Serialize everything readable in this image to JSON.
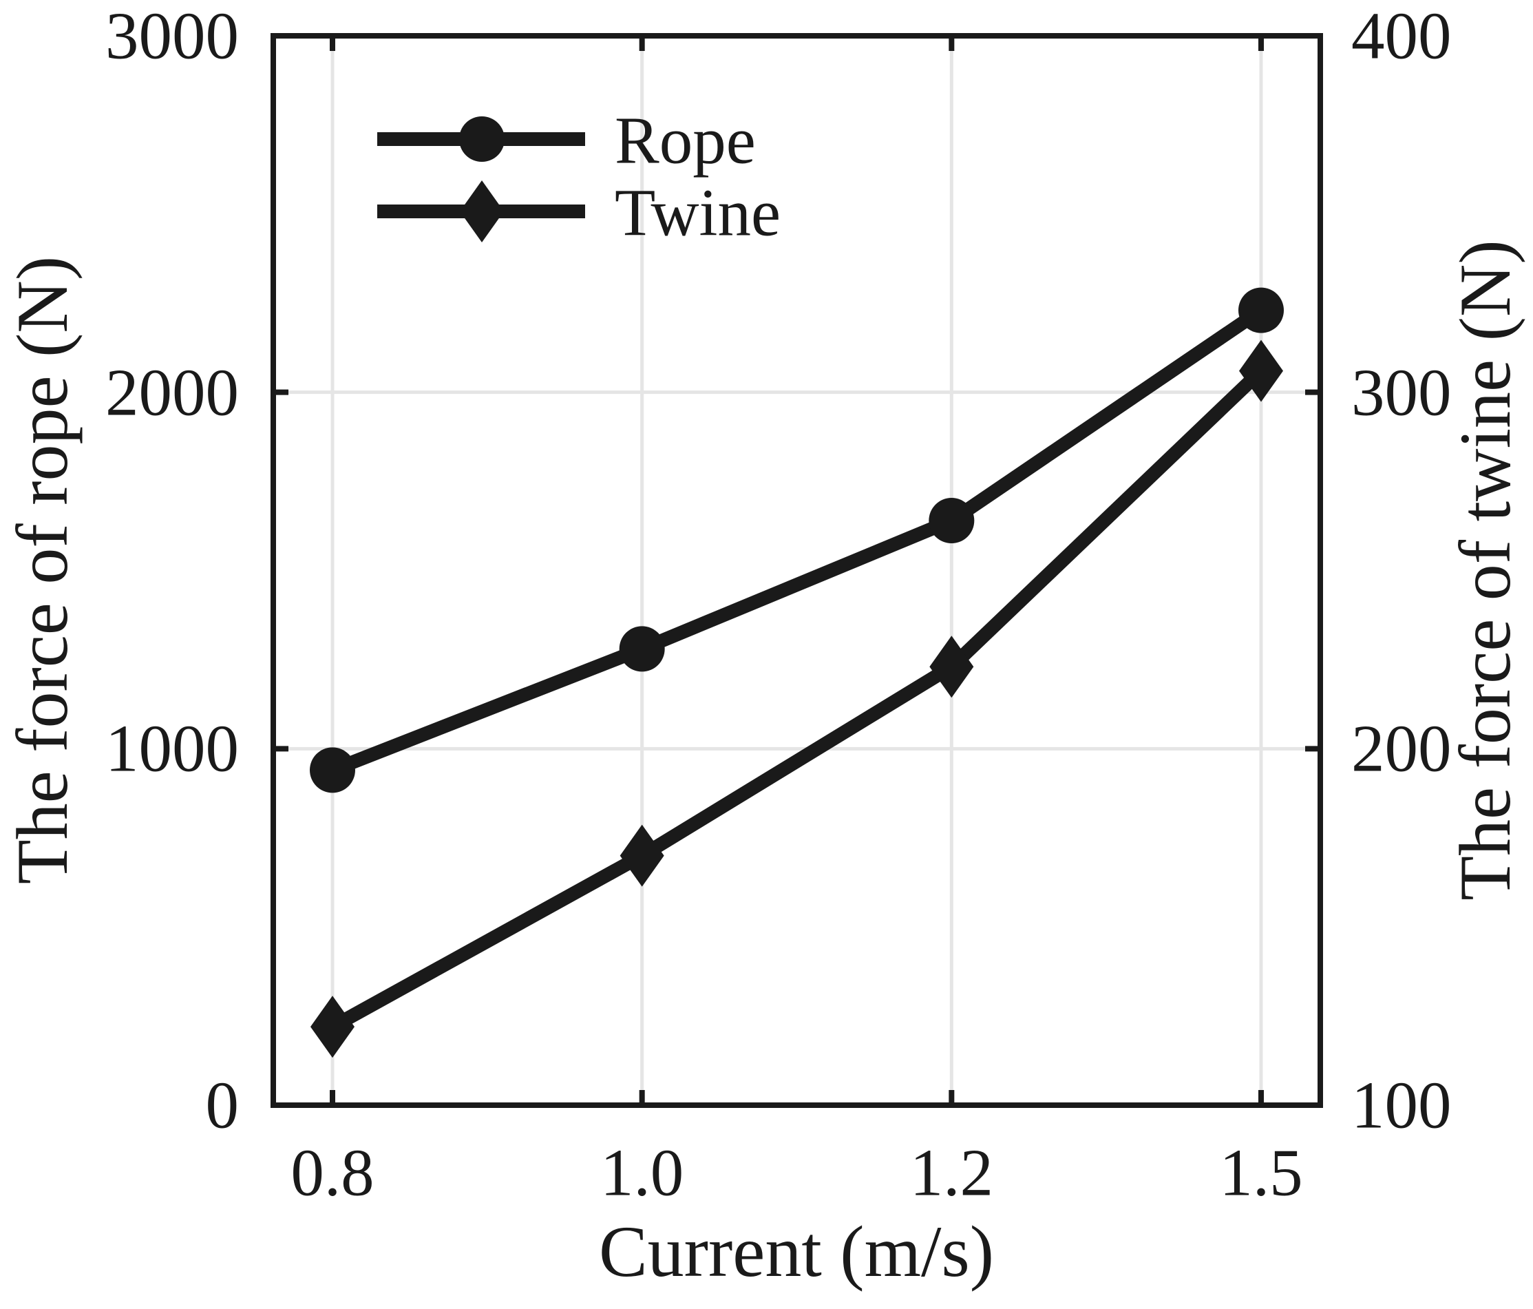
{
  "chart_data": {
    "type": "line",
    "x": {
      "label": "Current (m/s)",
      "tick_labels": [
        "0.8",
        "1.0",
        "1.2",
        "1.5"
      ],
      "values": [
        0.8,
        1.0,
        1.2,
        1.5
      ],
      "spacing": "categorical-equal"
    },
    "y_left": {
      "label": "The force of rope (N)",
      "range": [
        0,
        3000
      ],
      "tick_values": [
        0,
        1000,
        2000,
        3000
      ],
      "tick_labels": [
        "0",
        "1000",
        "2000",
        "3000"
      ]
    },
    "y_right": {
      "label": "The force of twine (N)",
      "range": [
        100,
        400
      ],
      "tick_values": [
        100,
        200,
        300,
        400
      ],
      "tick_labels": [
        "100",
        "200",
        "300",
        "400"
      ]
    },
    "series": [
      {
        "name": "Rope",
        "axis": "left",
        "marker": "circle",
        "values": [
          940,
          1280,
          1640,
          2230
        ]
      },
      {
        "name": "Twine",
        "axis": "right",
        "marker": "diamond",
        "values": [
          122,
          170,
          223,
          306
        ]
      }
    ],
    "legend": {
      "position": "upper-left",
      "entries": [
        "Rope",
        "Twine"
      ]
    },
    "grid": true,
    "colors": {
      "line": "#1a1a1a",
      "text": "#1a1a1a",
      "grid": "#e5e5e5",
      "background": "#ffffff"
    }
  }
}
